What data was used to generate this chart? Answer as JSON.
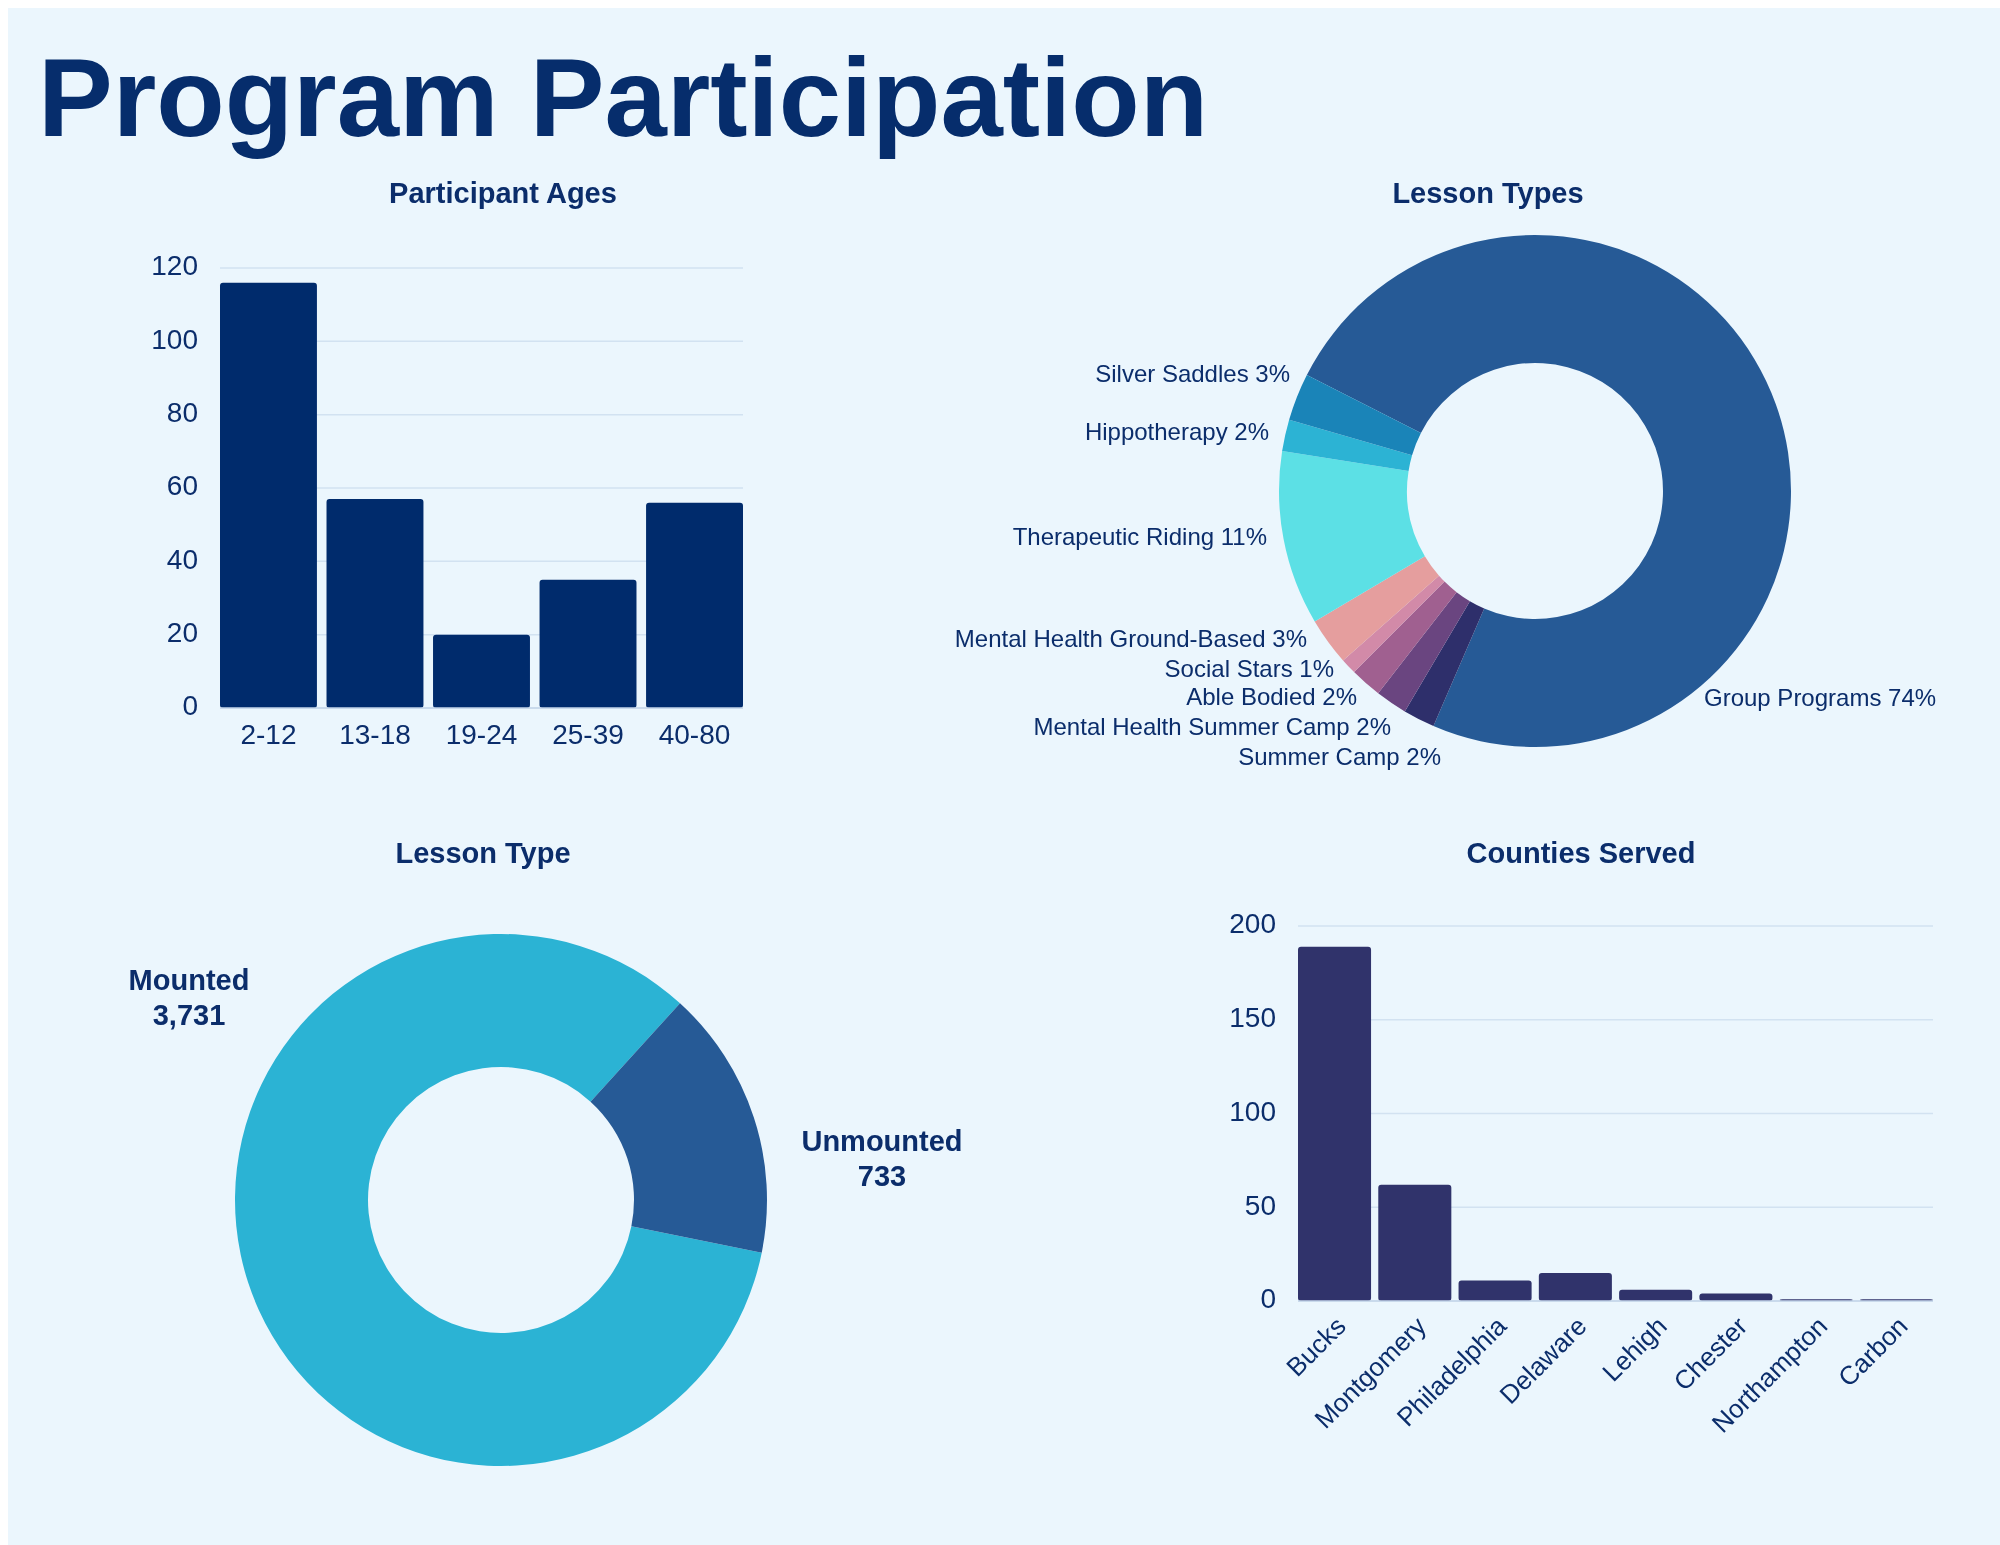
{
  "chart_data": [
    {
      "type": "other",
      "title": "Program Participation"
    },
    {
      "type": "bar",
      "title": "Participant Ages",
      "categories": [
        "2-12",
        "13-18",
        "19-24",
        "25-39",
        "40-80"
      ],
      "values": [
        116,
        57,
        20,
        35,
        56
      ],
      "color": "#002b6c",
      "ylim": [
        0,
        120
      ],
      "yticks": [
        0,
        20,
        40,
        60,
        80,
        100,
        120
      ],
      "grid": "y"
    },
    {
      "type": "donut",
      "title": "Lesson Types",
      "categories": [
        "Group Programs",
        "Summer Camp",
        "Mental Health Summer Camp",
        "Able Bodied",
        "Social Stars",
        "Mental Health Ground-Based",
        "Therapeutic Riding",
        "Hippotherapy",
        "Silver Saddles"
      ],
      "values": [
        74,
        2,
        2,
        2,
        1,
        3,
        11,
        2,
        3
      ],
      "value_labels": [
        "74%",
        "2%",
        "2%",
        "2%",
        "1%",
        "3%",
        "11%",
        "2%",
        "3%"
      ],
      "colors": [
        "#265a96",
        "#2e2f6b",
        "#6a4580",
        "#a06090",
        "#d28aa8",
        "#e59e9e",
        "#5ce0e5",
        "#2cb3d4",
        "#1a84b8"
      ]
    },
    {
      "type": "donut",
      "title": "Lesson Type",
      "categories": [
        "Mounted",
        "Unmounted"
      ],
      "values": [
        3731,
        733
      ],
      "value_labels": [
        "3,731",
        "733"
      ],
      "colors": [
        "#2bb3d4",
        "#265a96"
      ]
    },
    {
      "type": "bar",
      "title": "Counties Served",
      "categories": [
        "Bucks",
        "Montgomery",
        "Philadelphia",
        "Delaware",
        "Lehigh",
        "Chester",
        "Northampton",
        "Carbon"
      ],
      "values": [
        189,
        62,
        11,
        15,
        6,
        4,
        1,
        1
      ],
      "color": "#30336b",
      "ylim": [
        0,
        200
      ],
      "yticks": [
        0,
        50,
        100,
        150,
        200
      ],
      "grid": "y"
    }
  ]
}
